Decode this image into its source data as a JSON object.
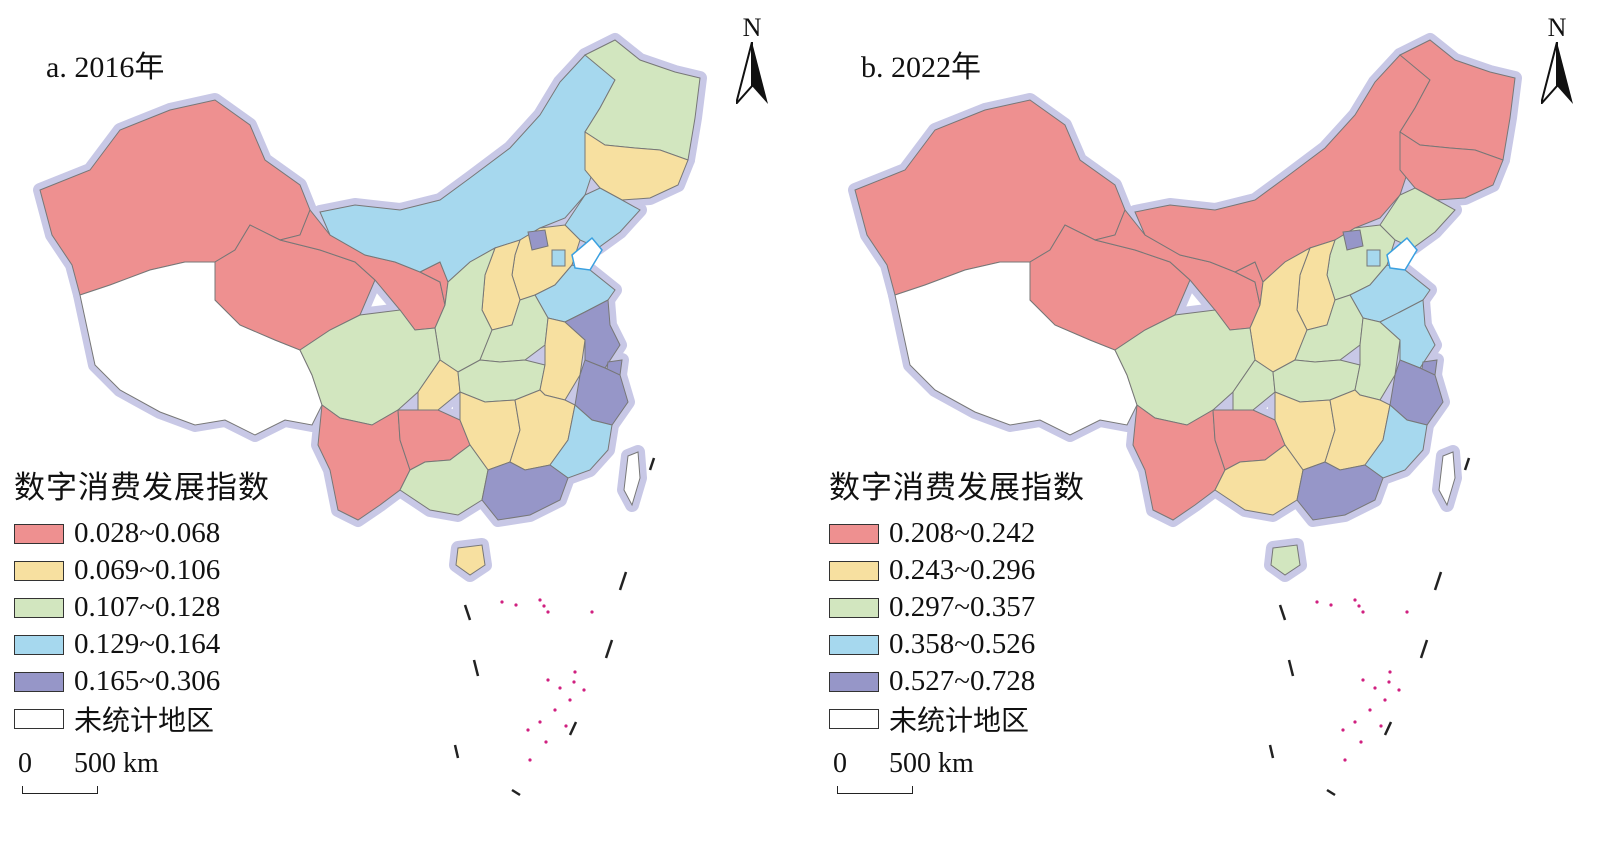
{
  "maps": [
    {
      "title": "a. 2016年",
      "north_label": "N",
      "legend": {
        "title": "数字消费发展指数",
        "items": [
          {
            "label": "0.028~0.068",
            "color": "#ee9090"
          },
          {
            "label": "0.069~0.106",
            "color": "#f7e0a0"
          },
          {
            "label": "0.107~0.128",
            "color": "#d2e6bf"
          },
          {
            "label": "0.129~0.164",
            "color": "#a6d8ee"
          },
          {
            "label": "0.165~0.306",
            "color": "#9696c8"
          },
          {
            "label": "未统计地区",
            "color": "#ffffff"
          }
        ]
      },
      "scale": {
        "zero": "0",
        "length": "500 km"
      }
    },
    {
      "title": "b. 2022年",
      "north_label": "N",
      "legend": {
        "title": "数字消费发展指数",
        "items": [
          {
            "label": "0.208~0.242",
            "color": "#ee9090"
          },
          {
            "label": "0.243~0.296",
            "color": "#f7e0a0"
          },
          {
            "label": "0.297~0.357",
            "color": "#d2e6bf"
          },
          {
            "label": "0.358~0.526",
            "color": "#a6d8ee"
          },
          {
            "label": "0.527~0.728",
            "color": "#9696c8"
          },
          {
            "label": "未统计地区",
            "color": "#ffffff"
          }
        ]
      },
      "scale": {
        "zero": "0",
        "length": "500 km"
      }
    }
  ],
  "region_classes": {
    "2016": {
      "xinjiang": 0,
      "tibet": 5,
      "qinghai": 0,
      "gansu": 0,
      "ningxia": 0,
      "neimenggu": 3,
      "heilongjiang": 2,
      "jilin": 1,
      "liaoning": 3,
      "hebei": 1,
      "beijing": 4,
      "tianjin": 3,
      "shanxi": 1,
      "shaanxi": 2,
      "shandong": 3,
      "henan": 2,
      "sichuan": 2,
      "chongqing": 1,
      "hubei": 2,
      "anhui": 1,
      "jiangsu": 4,
      "shanghai": 4,
      "zhejiang": 4,
      "yunnan": 0,
      "guizhou": 0,
      "hunan": 1,
      "jiangxi": 1,
      "fujian": 3,
      "guangxi": 2,
      "guangdong": 4,
      "hainan": 1,
      "taiwan": 5
    },
    "2022": {
      "xinjiang": 0,
      "tibet": 5,
      "qinghai": 0,
      "gansu": 0,
      "ningxia": 0,
      "neimenggu": 0,
      "heilongjiang": 0,
      "jilin": 0,
      "liaoning": 2,
      "hebei": 2,
      "beijing": 4,
      "tianjin": 3,
      "shanxi": 1,
      "shaanxi": 1,
      "shandong": 3,
      "henan": 2,
      "sichuan": 2,
      "chongqing": 2,
      "hubei": 2,
      "anhui": 2,
      "jiangsu": 3,
      "shanghai": 4,
      "zhejiang": 4,
      "yunnan": 0,
      "guizhou": 0,
      "hunan": 1,
      "jiangxi": 1,
      "fujian": 3,
      "guangxi": 1,
      "guangdong": 4,
      "hainan": 2,
      "taiwan": 5
    }
  }
}
